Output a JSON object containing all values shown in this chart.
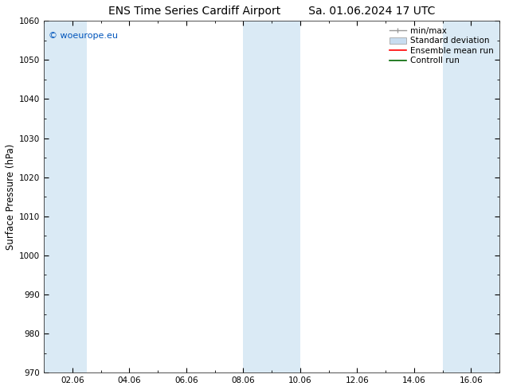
{
  "title_left": "ENS Time Series Cardiff Airport",
  "title_right": "Sa. 01.06.2024 17 UTC",
  "ylabel": "Surface Pressure (hPa)",
  "ylim": [
    970,
    1060
  ],
  "yticks": [
    970,
    980,
    990,
    1000,
    1010,
    1020,
    1030,
    1040,
    1050,
    1060
  ],
  "xtick_labels": [
    "02.06",
    "04.06",
    "06.06",
    "08.06",
    "10.06",
    "12.06",
    "14.06",
    "16.06"
  ],
  "xtick_positions": [
    2,
    4,
    6,
    8,
    10,
    12,
    14,
    16
  ],
  "xlim": [
    1,
    17
  ],
  "watermark": "© woeurope.eu",
  "watermark_color": "#0055bb",
  "bg_color": "#ffffff",
  "plot_bg_color": "#ffffff",
  "shaded_bands": [
    {
      "x_start": 1.0,
      "x_end": 2.5
    },
    {
      "x_start": 8.0,
      "x_end": 10.0
    },
    {
      "x_start": 15.0,
      "x_end": 17.0
    }
  ],
  "shaded_color": "#daeaf5",
  "legend_items": [
    {
      "label": "min/max",
      "color": "#aaaaaa",
      "type": "errorbar"
    },
    {
      "label": "Standard deviation",
      "color": "#c8ddf0",
      "type": "fill"
    },
    {
      "label": "Ensemble mean run",
      "color": "#ff0000",
      "type": "line"
    },
    {
      "label": "Controll run",
      "color": "#006600",
      "type": "line"
    }
  ],
  "title_fontsize": 10,
  "tick_fontsize": 7.5,
  "ylabel_fontsize": 8.5,
  "legend_fontsize": 7.5,
  "figsize": [
    6.34,
    4.9
  ],
  "dpi": 100
}
